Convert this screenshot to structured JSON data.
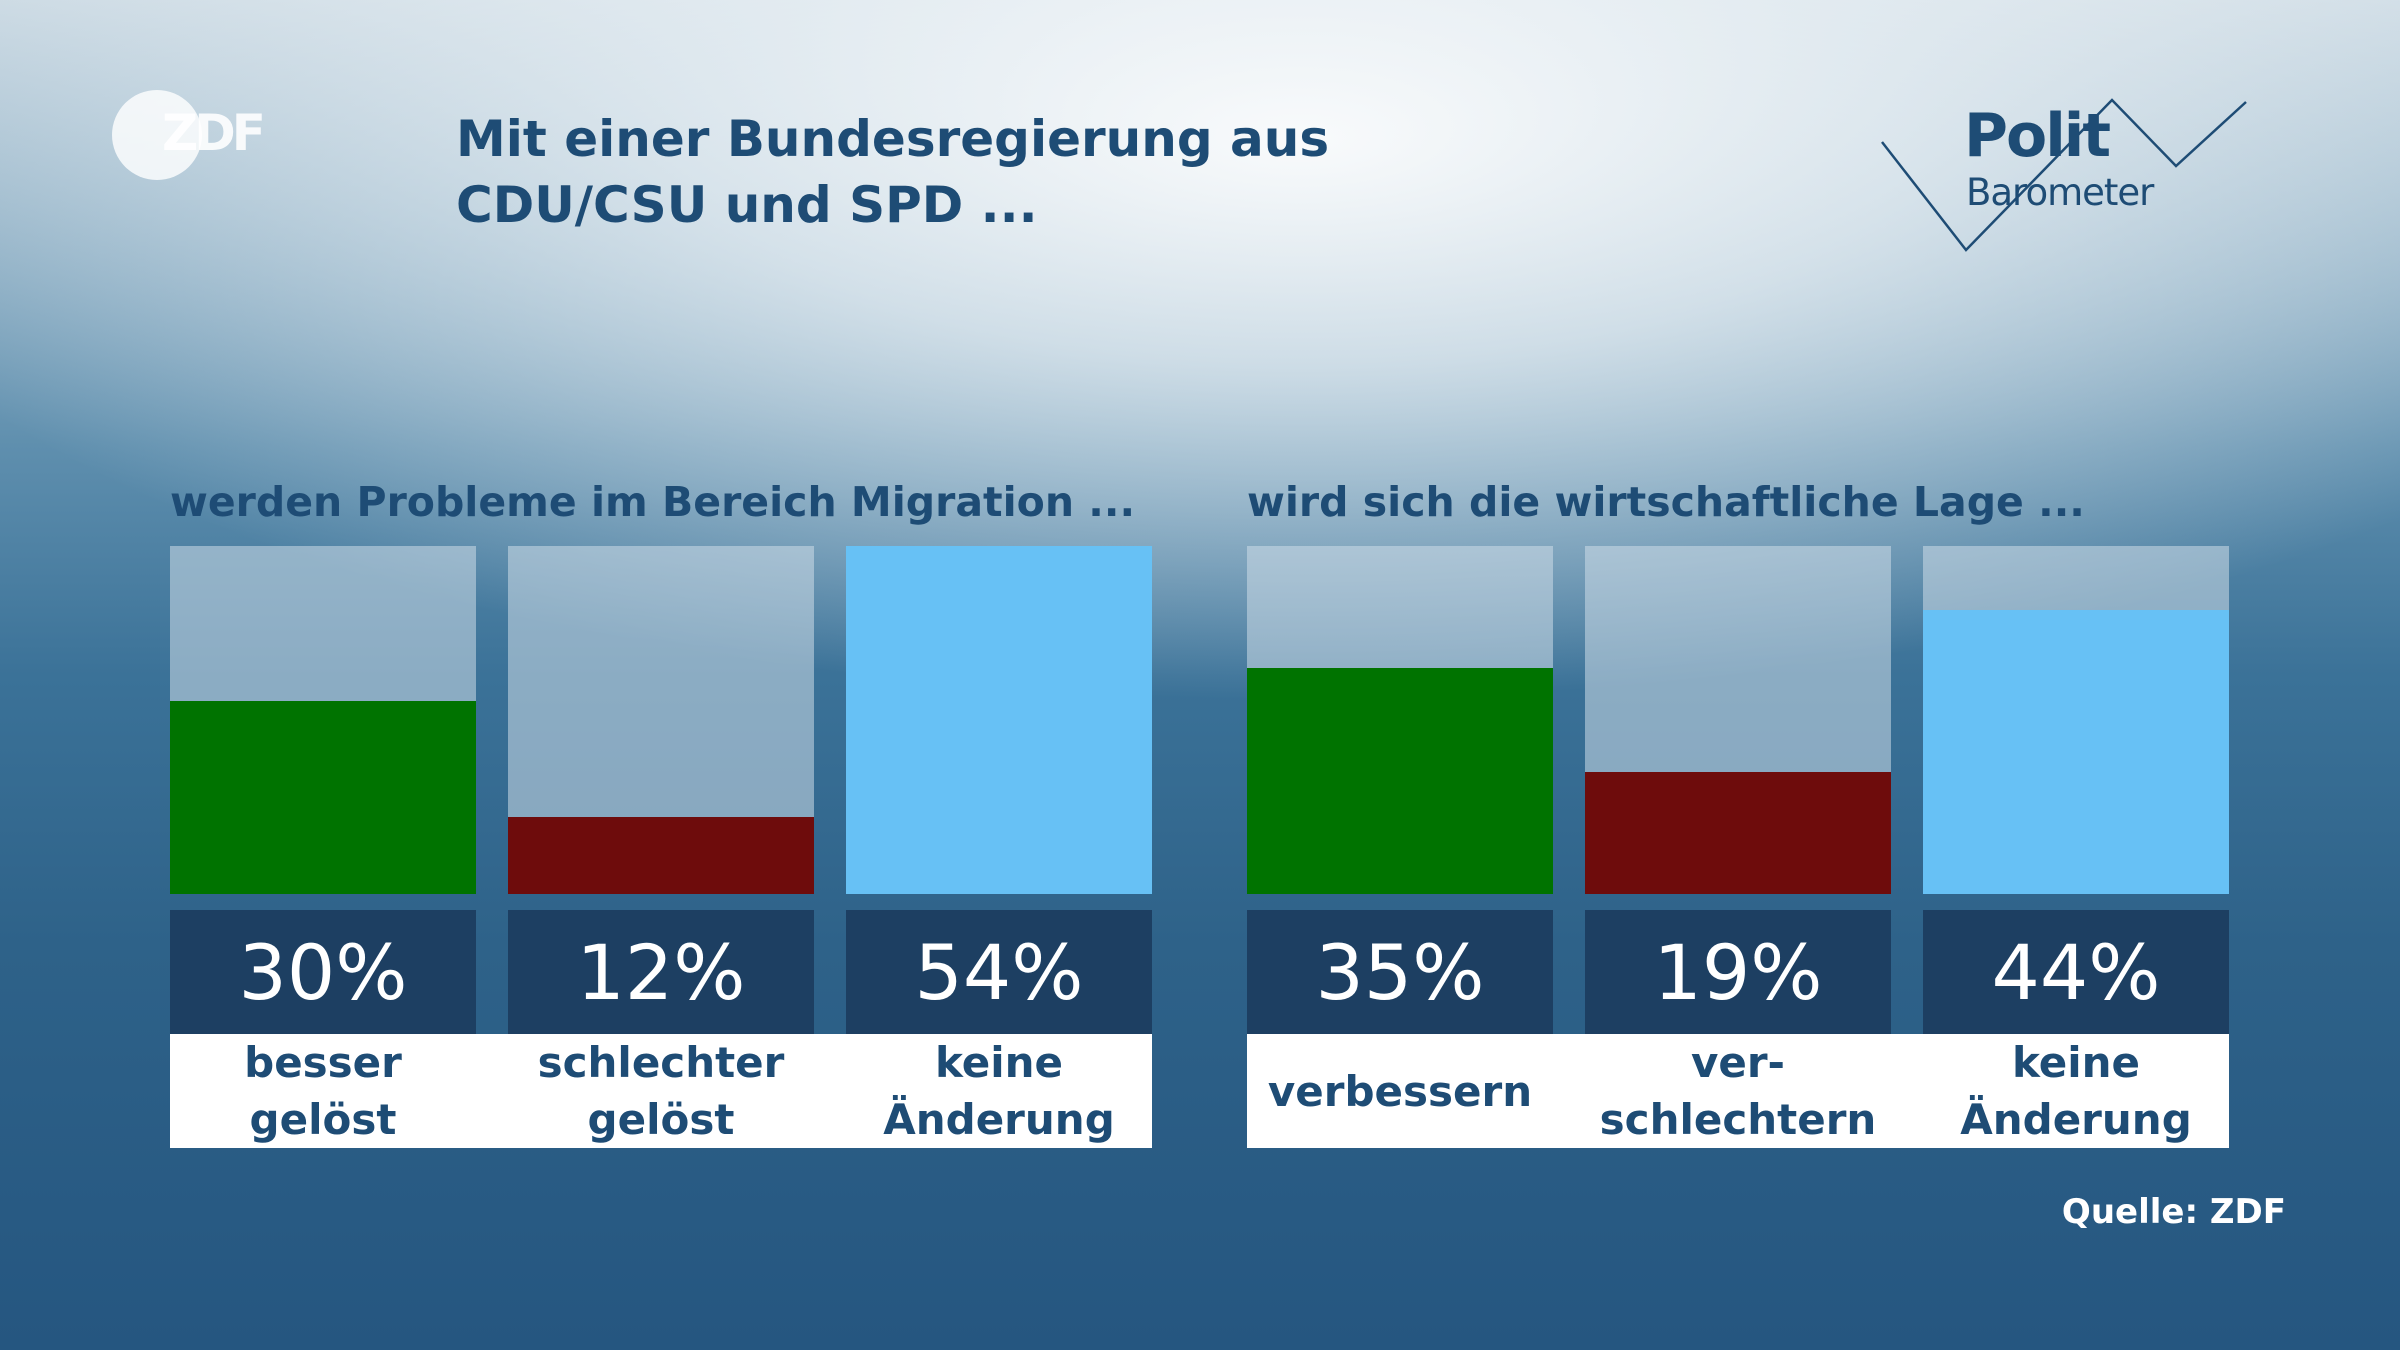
{
  "logo_zdf": "ZDF",
  "title_line1": "Mit einer Bundesregierung aus",
  "title_line2": "CDU/CSU und SPD ...",
  "logo_polit": "Polit",
  "logo_barometer": "Barometer",
  "source": "Quelle: ZDF",
  "colors": {
    "positive": "#007300",
    "negative": "#6e0c0c",
    "no_change": "#67c1f5",
    "value_box": "#1d3f62",
    "title": "#1e4c75"
  },
  "chart_data": [
    {
      "type": "bar",
      "title": "werden Probleme im Bereich Migration ...",
      "categories": [
        "besser\ngelöst",
        "schlechter\ngelöst",
        "keine\nÄnderung"
      ],
      "values": [
        30,
        12,
        54
      ],
      "value_labels": [
        "30%",
        "12%",
        "54%"
      ],
      "bar_colors": [
        "#007300",
        "#6e0c0c",
        "#67c1f5"
      ],
      "ylim": [
        0,
        54
      ]
    },
    {
      "type": "bar",
      "title": "wird sich die wirtschaftliche Lage ...",
      "categories": [
        "verbessern",
        "ver-\nschlechtern",
        "keine\nÄnderung"
      ],
      "values": [
        35,
        19,
        44
      ],
      "value_labels": [
        "35%",
        "19%",
        "44%"
      ],
      "bar_colors": [
        "#007300",
        "#6e0c0c",
        "#67c1f5"
      ],
      "ylim": [
        0,
        54
      ]
    }
  ]
}
